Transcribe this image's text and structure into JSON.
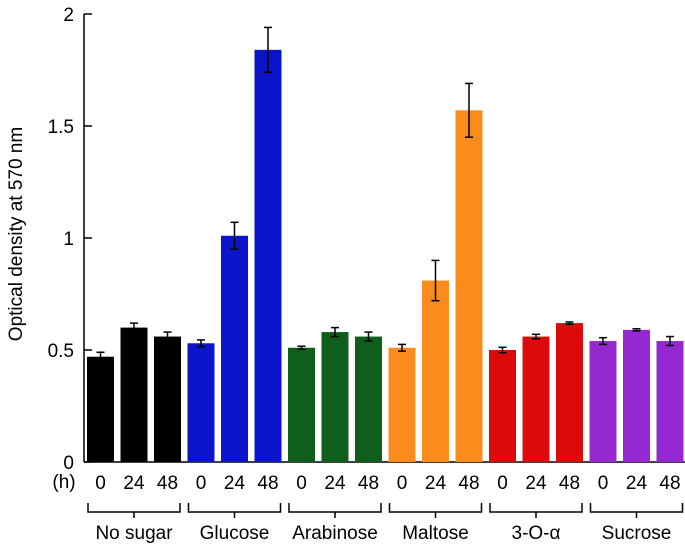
{
  "chart_data": {
    "type": "bar",
    "ylabel": "Optical density at 570 nm",
    "ylim": [
      0,
      2
    ],
    "yticks": [
      0,
      0.5,
      1,
      1.5,
      2
    ],
    "ytick_labels": [
      "0",
      "0.5",
      "1",
      "1.5",
      "2"
    ],
    "time_unit_label": "(h)",
    "time_points": [
      "0",
      "24",
      "48"
    ],
    "groups": [
      {
        "name": "No sugar",
        "color": "#000000",
        "values": [
          0.47,
          0.6,
          0.56
        ],
        "errors": [
          0.02,
          0.02,
          0.02
        ]
      },
      {
        "name": "Glucose",
        "color": "#0A14C8",
        "values": [
          0.53,
          1.01,
          1.84
        ],
        "errors": [
          0.015,
          0.06,
          0.1
        ]
      },
      {
        "name": "Arabinose",
        "color": "#0E5E1C",
        "values": [
          0.51,
          0.58,
          0.56
        ],
        "errors": [
          0.007,
          0.02,
          0.02
        ]
      },
      {
        "name": "Maltose",
        "color": "#FA8C1E",
        "values": [
          0.51,
          0.81,
          1.57
        ],
        "errors": [
          0.015,
          0.09,
          0.12
        ]
      },
      {
        "name": "3-O-α",
        "color": "#DC0A0A",
        "values": [
          0.5,
          0.56,
          0.62
        ],
        "errors": [
          0.012,
          0.01,
          0.005
        ]
      },
      {
        "name": "Sucrose",
        "color": "#9628D2",
        "values": [
          0.54,
          0.59,
          0.54
        ],
        "errors": [
          0.015,
          0.005,
          0.02
        ]
      }
    ],
    "grid": false,
    "legend": "none"
  }
}
